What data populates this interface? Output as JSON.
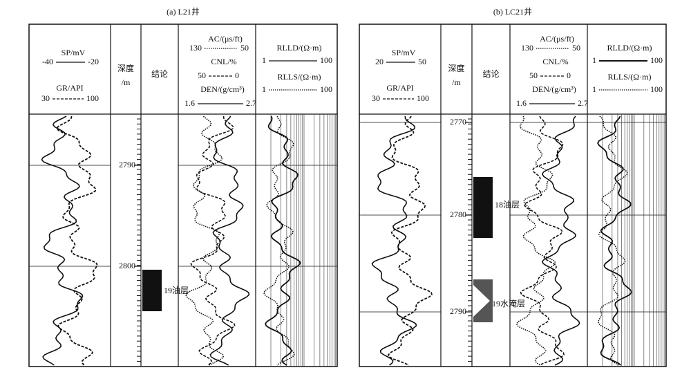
{
  "panels": [
    {
      "title": "(a) L21井",
      "sp": {
        "label": "SP/mV",
        "min": "-40",
        "max": "-20"
      },
      "gr": {
        "label": "GR/API",
        "min": "30",
        "max": "100"
      },
      "depth": {
        "line1": "深度",
        "line2": "/m"
      },
      "conclusion": "结论",
      "ac": {
        "label": "AC/(μs/ft)",
        "min": "130",
        "max": "50"
      },
      "cnl": {
        "label": "CNL/%",
        "min": "50",
        "max": "0"
      },
      "den": {
        "label": "DEN/(g/cm³)",
        "min": "1.6",
        "max": "2.7"
      },
      "rlld": {
        "label": "RLLD/(Ω·m)",
        "min": "1",
        "max": "100"
      },
      "rlls": {
        "label": "RLLS/(Ω·m)",
        "min": "1",
        "max": "100"
      },
      "depth_labels": [
        "2790",
        "2800"
      ],
      "zones": [
        "19油层"
      ]
    },
    {
      "title": "(b) LC21井",
      "sp": {
        "label": "SP/mV",
        "min": "20",
        "max": "50"
      },
      "gr": {
        "label": "GR/API",
        "min": "30",
        "max": "100"
      },
      "depth": {
        "line1": "深度",
        "line2": "/m"
      },
      "conclusion": "结论",
      "ac": {
        "label": "AC/(μs/ft)",
        "min": "130",
        "max": "50"
      },
      "cnl": {
        "label": "CNL/%",
        "min": "50",
        "max": "0"
      },
      "den": {
        "label": "DEN/(g/cm³)",
        "min": "1.6",
        "max": "2.7"
      },
      "rlld": {
        "label": "RLLD/(Ω·m)",
        "min": "1",
        "max": "100"
      },
      "rlls": {
        "label": "RLLS/(Ω·m)",
        "min": "1",
        "max": "100"
      },
      "depth_labels": [
        "2770",
        "2780",
        "2790"
      ],
      "zones": [
        "18油层",
        "19水淹层"
      ]
    }
  ]
}
